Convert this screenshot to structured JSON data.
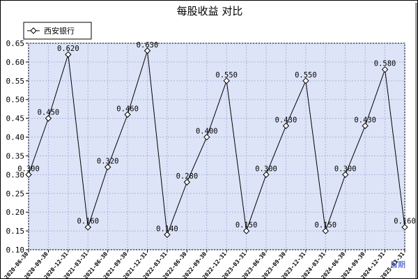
{
  "chart_data": {
    "type": "line",
    "title": "每股收益  对比",
    "x": [
      "2020-06-30",
      "2020-09-30",
      "2020-12-31",
      "2021-03-31",
      "2021-06-30",
      "2021-09-30",
      "2021-12-31",
      "2022-03-31",
      "2022-06-30",
      "2022-09-30",
      "2022-12-31",
      "2023-03-31",
      "2023-06-30",
      "2023-09-30",
      "2023-12-31",
      "2024-03-31",
      "2024-06-30",
      "2024-09-30",
      "2024-12-31",
      "2025-03-31"
    ],
    "series": [
      {
        "name": "西安银行",
        "values": [
          0.3,
          0.45,
          0.62,
          0.16,
          0.32,
          0.46,
          0.63,
          0.14,
          0.28,
          0.4,
          0.55,
          0.15,
          0.3,
          0.43,
          0.55,
          0.15,
          0.3,
          0.43,
          0.58,
          0.16
        ],
        "labels": [
          "0.300",
          "0.450",
          "0.620",
          "0.160",
          "0.320",
          "0.460",
          "0.630",
          "0.140",
          "0.280",
          "0.400",
          "0.550",
          "0.150",
          "0.300",
          "0.430",
          "0.550",
          "0.150",
          "0.300",
          "0.430",
          "0.580",
          "0.160"
        ],
        "color": "#000000"
      }
    ],
    "yticks": [
      "0.10",
      "0.15",
      "0.20",
      "0.25",
      "0.30",
      "0.35",
      "0.40",
      "0.45",
      "0.50",
      "0.55",
      "0.60",
      "0.65"
    ],
    "ylim": [
      0.1,
      0.65
    ],
    "grid": true,
    "legend_position": "top-left",
    "corner_label": "日期",
    "plot_bg": "#dde4f7",
    "grid_color": "#aab4dd"
  }
}
